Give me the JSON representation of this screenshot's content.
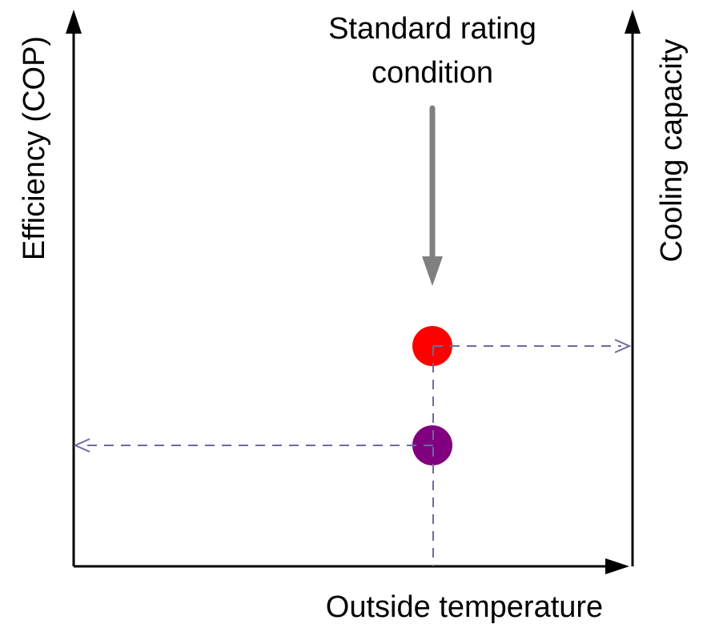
{
  "labels": {
    "annotation_line1": "Standard rating",
    "annotation_line2": "condition",
    "left_axis": "Efficiency (COP)",
    "right_axis": "Cooling capacity",
    "bottom_axis": "Outside temperature"
  },
  "markers": [
    {
      "name": "cooling-capacity-point",
      "color": "#ff0000"
    },
    {
      "name": "efficiency-point",
      "color": "#800080"
    }
  ],
  "colors": {
    "axis": "#000000",
    "annotation_arrow": "#808080",
    "guide_lines": "#6b6b9e"
  }
}
